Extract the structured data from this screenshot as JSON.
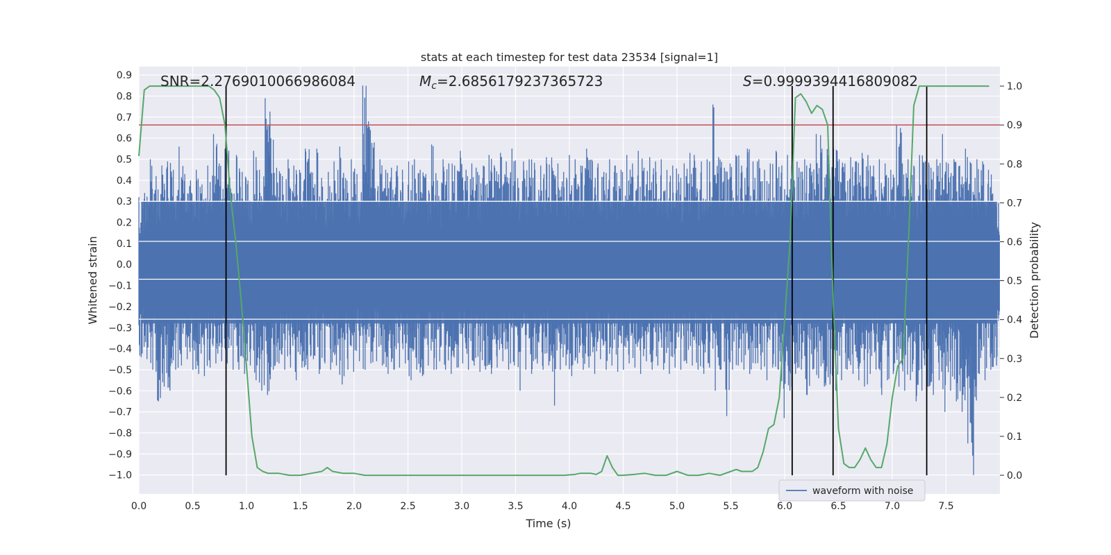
{
  "chart_data": {
    "type": "line",
    "title": "stats at each timestep for test data 23534 [signal=1]",
    "xlabel": "Time (s)",
    "ylabel": "Whitened strain",
    "y2label": "Detection probability",
    "xlim": [
      0.0,
      8.0
    ],
    "ylim": [
      -1.09,
      0.94
    ],
    "y2lim": [
      -0.048,
      1.05
    ],
    "grid": true,
    "legend_position": "lower-right",
    "xticks": [
      "0.0",
      "0.5",
      "1.0",
      "1.5",
      "2.0",
      "2.5",
      "3.0",
      "3.5",
      "4.0",
      "4.5",
      "5.0",
      "5.5",
      "6.0",
      "6.5",
      "7.0",
      "7.5"
    ],
    "yticks": [
      "0.9",
      "0.8",
      "0.7",
      "0.6",
      "0.5",
      "0.4",
      "0.3",
      "0.2",
      "0.1",
      "0.0",
      "−1.0"
    ],
    "yticks_neg": [
      "−0.1",
      "−0.2",
      "−0.3",
      "−0.4",
      "−0.5",
      "−0.6",
      "−0.7",
      "−0.8",
      "−0.9",
      "−1.0"
    ],
    "y2ticks": [
      "1.0",
      "0.9",
      "0.8",
      "0.7",
      "0.6",
      "0.5",
      "0.4",
      "0.3",
      "0.2",
      "0.1",
      "0.0"
    ],
    "annotations": {
      "snr": "SNR=2.2769010066986084",
      "mc_symbol": "M",
      "mc_sub": "c",
      "mc_value": "=2.6856179237365723",
      "s_symbol": "S",
      "s_value": "=0.9999394416809082"
    },
    "threshold": {
      "value": 0.9,
      "axis": "right",
      "color": "#c44e52"
    },
    "vlines_x": [
      0.81,
      6.07,
      6.45,
      7.32
    ],
    "series": [
      {
        "name": "waveform with noise",
        "axis": "left",
        "color": "#4c72b0",
        "envelope_upper": [
          0.32,
          0.34,
          0.5,
          0.42,
          0.47,
          0.49,
          0.45,
          0.56,
          0.43,
          0.4,
          0.45,
          0.38,
          0.47,
          0.62,
          0.48,
          0.55,
          0.36,
          0.52,
          0.44,
          0.4,
          0.54,
          0.45,
          0.79,
          0.6,
          0.46,
          0.42,
          0.5,
          0.47,
          0.45,
          0.55,
          0.44,
          0.55,
          0.37,
          0.44,
          0.49,
          0.56,
          0.41,
          0.5,
          0.43,
          0.85,
          0.68,
          0.58,
          0.5,
          0.45,
          0.46,
          0.47,
          0.39,
          0.49,
          0.5,
          0.45,
          0.43,
          0.57,
          0.4,
          0.5,
          0.48,
          0.47,
          0.54,
          0.45,
          0.48,
          0.44,
          0.47,
          0.52,
          0.46,
          0.53,
          0.49,
          0.55,
          0.41,
          0.49,
          0.5,
          0.45,
          0.47,
          0.51,
          0.46,
          0.48,
          0.44,
          0.52,
          0.5,
          0.47,
          0.55,
          0.49,
          0.48,
          0.44,
          0.5,
          0.47,
          0.45,
          0.52,
          0.48,
          0.54,
          0.46,
          0.51,
          0.49,
          0.5,
          0.45,
          0.47,
          0.43,
          0.48,
          0.53,
          0.46,
          0.49,
          0.5,
          0.76,
          0.51,
          0.46,
          0.48,
          0.52,
          0.47,
          0.55,
          0.49,
          0.5,
          0.45,
          0.48,
          0.54,
          0.47,
          0.52,
          0.49,
          0.46,
          0.5,
          0.48,
          0.62,
          0.55,
          0.52,
          0.55,
          0.5,
          0.48,
          0.51,
          0.49,
          0.53,
          0.52,
          0.47,
          0.5,
          0.48,
          0.45,
          0.66,
          0.48,
          0.5,
          0.47,
          0.52,
          0.49,
          0.46,
          0.5,
          0.62,
          0.48,
          0.5,
          0.47,
          0.55,
          0.48,
          0.5,
          0.49,
          0.45,
          0.3
        ],
        "envelope_lower": [
          -0.44,
          -0.45,
          -0.5,
          -0.65,
          -0.58,
          -0.6,
          -0.5,
          -0.48,
          -0.45,
          -0.5,
          -0.52,
          -0.53,
          -0.49,
          -0.47,
          -0.46,
          -0.47,
          -0.5,
          -0.5,
          -0.52,
          -0.48,
          -0.55,
          -0.6,
          -0.62,
          -0.5,
          -0.47,
          -0.5,
          -0.49,
          -0.55,
          -0.49,
          -0.5,
          -0.45,
          -0.52,
          -0.47,
          -0.5,
          -0.48,
          -0.57,
          -0.5,
          -0.51,
          -0.46,
          -0.5,
          -0.47,
          -0.46,
          -0.48,
          -0.52,
          -0.5,
          -0.49,
          -0.47,
          -0.55,
          -0.5,
          -0.53,
          -0.48,
          -0.5,
          -0.46,
          -0.5,
          -0.52,
          -0.49,
          -0.47,
          -0.5,
          -0.48,
          -0.51,
          -0.5,
          -0.52,
          -0.49,
          -0.46,
          -0.5,
          -0.48,
          -0.6,
          -0.5,
          -0.52,
          -0.47,
          -0.5,
          -0.48,
          -0.67,
          -0.5,
          -0.48,
          -0.53,
          -0.47,
          -0.5,
          -0.49,
          -0.52,
          -0.45,
          -0.5,
          -0.48,
          -0.51,
          -0.5,
          -0.47,
          -0.49,
          -0.52,
          -0.46,
          -0.5,
          -0.48,
          -0.5,
          -0.52,
          -0.49,
          -0.5,
          -0.47,
          -0.48,
          -0.5,
          -0.52,
          -0.49,
          -0.6,
          -0.5,
          -0.72,
          -0.5,
          -0.48,
          -0.5,
          -0.52,
          -0.47,
          -0.5,
          -0.55,
          -0.49,
          -0.5,
          -0.73,
          -0.6,
          -0.52,
          -0.5,
          -0.62,
          -0.5,
          -0.54,
          -0.58,
          -0.57,
          -0.6,
          -0.55,
          -0.5,
          -0.52,
          -0.55,
          -0.58,
          -0.52,
          -0.5,
          -0.62,
          -0.55,
          -0.52,
          -0.58,
          -0.6,
          -0.55,
          -0.65,
          -0.6,
          -0.58,
          -0.62,
          -0.55,
          -0.7,
          -0.6,
          -0.65,
          -0.7,
          -0.85,
          -1.0,
          -0.52,
          -0.55,
          -0.5,
          -0.48
        ]
      },
      {
        "name": "",
        "axis": "right",
        "color": "#55a868",
        "x": [
          0.0,
          0.05,
          0.1,
          0.15,
          0.2,
          0.3,
          0.4,
          0.5,
          0.6,
          0.65,
          0.7,
          0.75,
          0.8,
          0.85,
          0.9,
          0.95,
          1.0,
          1.05,
          1.1,
          1.15,
          1.2,
          1.3,
          1.4,
          1.5,
          1.6,
          1.7,
          1.75,
          1.8,
          1.9,
          2.0,
          2.1,
          2.2,
          2.4,
          2.6,
          2.8,
          3.0,
          3.2,
          3.4,
          3.6,
          3.8,
          3.95,
          4.05,
          4.1,
          4.2,
          4.25,
          4.3,
          4.35,
          4.4,
          4.45,
          4.5,
          4.6,
          4.7,
          4.8,
          4.9,
          5.0,
          5.1,
          5.2,
          5.3,
          5.4,
          5.5,
          5.55,
          5.6,
          5.7,
          5.75,
          5.8,
          5.85,
          5.9,
          5.95,
          6.0,
          6.05,
          6.1,
          6.15,
          6.2,
          6.25,
          6.3,
          6.35,
          6.4,
          6.45,
          6.5,
          6.55,
          6.6,
          6.65,
          6.7,
          6.75,
          6.8,
          6.85,
          6.9,
          6.95,
          7.0,
          7.05,
          7.1,
          7.15,
          7.2,
          7.25,
          7.3,
          7.35,
          7.4,
          7.45,
          7.5,
          7.6,
          7.7,
          7.8,
          7.9
        ],
        "y": [
          0.82,
          0.99,
          1.0,
          1.0,
          1.0,
          1.0,
          1.0,
          1.0,
          1.0,
          1.0,
          0.99,
          0.97,
          0.9,
          0.72,
          0.6,
          0.45,
          0.28,
          0.1,
          0.02,
          0.01,
          0.005,
          0.005,
          0.0,
          0.0,
          0.005,
          0.01,
          0.02,
          0.01,
          0.005,
          0.005,
          0.0,
          0.0,
          0.0,
          0.0,
          0.0,
          0.0,
          0.0,
          0.0,
          0.0,
          0.0,
          0.0,
          0.002,
          0.005,
          0.005,
          0.002,
          0.01,
          0.05,
          0.02,
          0.0,
          0.0,
          0.002,
          0.005,
          0.0,
          0.0,
          0.01,
          0.0,
          0.0,
          0.005,
          0.0,
          0.01,
          0.015,
          0.01,
          0.01,
          0.02,
          0.06,
          0.12,
          0.13,
          0.2,
          0.4,
          0.6,
          0.97,
          0.98,
          0.96,
          0.93,
          0.95,
          0.94,
          0.9,
          0.45,
          0.12,
          0.03,
          0.02,
          0.02,
          0.04,
          0.07,
          0.04,
          0.02,
          0.02,
          0.08,
          0.2,
          0.28,
          0.3,
          0.6,
          0.95,
          1.0,
          1.0,
          1.0,
          1.0,
          1.0,
          1.0,
          1.0,
          1.0,
          1.0,
          1.0
        ]
      }
    ]
  }
}
